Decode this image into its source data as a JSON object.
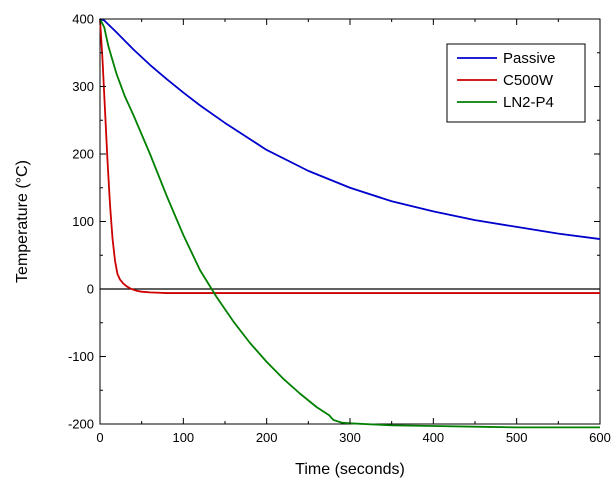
{
  "chart_data": {
    "type": "line",
    "title": "",
    "xlabel": "Time (seconds)",
    "ylabel": "Temperature (°C)",
    "xlim": [
      0,
      600
    ],
    "ylim": [
      -200,
      400
    ],
    "xticks": [
      0,
      100,
      200,
      300,
      400,
      500,
      600
    ],
    "yticks": [
      -200,
      -100,
      0,
      100,
      200,
      300,
      400
    ],
    "xtick_labels": [
      "0",
      "100",
      "200",
      "300",
      "400",
      "500",
      "600"
    ],
    "ytick_labels": [
      "-200",
      "-100",
      "0",
      "100",
      "200",
      "300",
      "400"
    ],
    "grid": false,
    "legend_position": "top-right",
    "reference_line": {
      "y": 0,
      "color": "#000000"
    },
    "series": [
      {
        "name": "Passive",
        "color": "#0000cc",
        "x": [
          0,
          5,
          20,
          40,
          60,
          80,
          100,
          120,
          150,
          200,
          250,
          300,
          350,
          400,
          450,
          500,
          550,
          600
        ],
        "y": [
          400,
          398,
          380,
          355,
          332,
          311,
          291,
          272,
          246,
          206,
          175,
          150,
          130,
          115,
          102,
          92,
          82,
          74
        ]
      },
      {
        "name": "C500W",
        "color": "#cc0000",
        "x": [
          0,
          3,
          6,
          9,
          12,
          15,
          18,
          21,
          24,
          28,
          32,
          36,
          40,
          45,
          50,
          60,
          80,
          100,
          150,
          200,
          300,
          400,
          500,
          600
        ],
        "y": [
          400,
          340,
          265,
          190,
          125,
          75,
          42,
          22,
          14,
          8,
          4,
          1,
          -1,
          -3,
          -4,
          -5,
          -6,
          -6,
          -6,
          -6,
          -6,
          -6,
          -6,
          -6
        ]
      },
      {
        "name": "LN2-P4",
        "color": "#008000",
        "x": [
          0,
          5,
          10,
          20,
          30,
          40,
          60,
          80,
          100,
          120,
          140,
          150,
          160,
          180,
          200,
          220,
          240,
          260,
          275,
          280,
          290,
          300,
          350,
          400,
          450,
          500,
          550,
          600
        ],
        "y": [
          400,
          388,
          360,
          318,
          285,
          258,
          200,
          138,
          80,
          28,
          -12,
          -30,
          -48,
          -80,
          -108,
          -133,
          -155,
          -175,
          -187,
          -194,
          -198,
          -199,
          -202,
          -203,
          -204,
          -205,
          -205,
          -205
        ]
      }
    ]
  }
}
